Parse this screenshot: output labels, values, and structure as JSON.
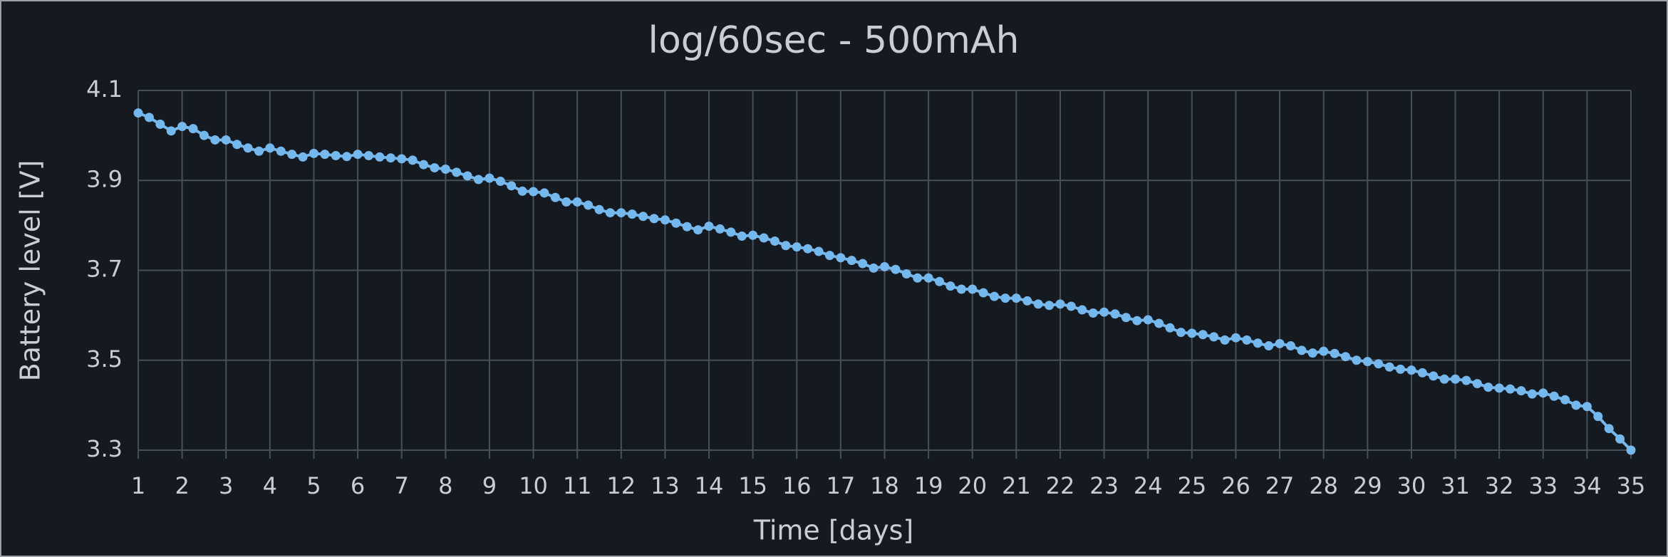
{
  "chart_data": {
    "type": "line",
    "title": "log/60sec - 500mAh",
    "x_label": "Time [days]",
    "y_label": "Battery level [V]",
    "x": [
      1,
      1.25,
      1.5,
      1.75,
      2,
      2.25,
      2.5,
      2.75,
      3,
      3.25,
      3.5,
      3.75,
      4,
      4.25,
      4.5,
      4.75,
      5,
      5.25,
      5.5,
      5.75,
      6,
      6.25,
      6.5,
      6.75,
      7,
      7.25,
      7.5,
      7.75,
      8,
      8.25,
      8.5,
      8.75,
      9,
      9.25,
      9.5,
      9.75,
      10,
      10.25,
      10.5,
      10.75,
      11,
      11.25,
      11.5,
      11.75,
      12,
      12.25,
      12.5,
      12.75,
      13,
      13.25,
      13.5,
      13.75,
      14,
      14.25,
      14.5,
      14.75,
      15,
      15.25,
      15.5,
      15.75,
      16,
      16.25,
      16.5,
      16.75,
      17,
      17.25,
      17.5,
      17.75,
      18,
      18.25,
      18.5,
      18.75,
      19,
      19.25,
      19.5,
      19.75,
      20,
      20.25,
      20.5,
      20.75,
      21,
      21.25,
      21.5,
      21.75,
      22,
      22.25,
      22.5,
      22.75,
      23,
      23.25,
      23.5,
      23.75,
      24,
      24.25,
      24.5,
      24.75,
      25,
      25.25,
      25.5,
      25.75,
      26,
      26.25,
      26.5,
      26.75,
      27,
      27.25,
      27.5,
      27.75,
      28,
      28.25,
      28.5,
      28.75,
      29,
      29.25,
      29.5,
      29.75,
      30,
      30.25,
      30.5,
      30.75,
      31,
      31.25,
      31.5,
      31.75,
      32,
      32.25,
      32.5,
      32.75,
      33,
      33.25,
      33.5,
      33.75,
      34,
      34.25,
      34.5,
      34.75,
      35
    ],
    "series": [
      {
        "name": "Battery level",
        "color": "#75b8ee",
        "values": [
          4.05,
          4.04,
          4.025,
          4.01,
          4.02,
          4.015,
          4.0,
          3.99,
          3.99,
          3.98,
          3.972,
          3.965,
          3.972,
          3.965,
          3.958,
          3.952,
          3.96,
          3.958,
          3.955,
          3.953,
          3.958,
          3.955,
          3.952,
          3.95,
          3.948,
          3.945,
          3.935,
          3.928,
          3.925,
          3.918,
          3.91,
          3.902,
          3.905,
          3.898,
          3.888,
          3.876,
          3.875,
          3.872,
          3.862,
          3.852,
          3.852,
          3.845,
          3.835,
          3.828,
          3.828,
          3.825,
          3.82,
          3.815,
          3.812,
          3.805,
          3.797,
          3.79,
          3.798,
          3.792,
          3.785,
          3.776,
          3.778,
          3.772,
          3.765,
          3.755,
          3.752,
          3.748,
          3.742,
          3.733,
          3.728,
          3.722,
          3.715,
          3.705,
          3.708,
          3.702,
          3.692,
          3.683,
          3.683,
          3.675,
          3.665,
          3.658,
          3.658,
          3.65,
          3.642,
          3.638,
          3.638,
          3.632,
          3.625,
          3.622,
          3.625,
          3.62,
          3.612,
          3.605,
          3.607,
          3.603,
          3.595,
          3.588,
          3.59,
          3.582,
          3.572,
          3.562,
          3.56,
          3.557,
          3.552,
          3.545,
          3.55,
          3.545,
          3.538,
          3.532,
          3.537,
          3.532,
          3.522,
          3.516,
          3.52,
          3.515,
          3.508,
          3.5,
          3.497,
          3.492,
          3.485,
          3.48,
          3.478,
          3.472,
          3.465,
          3.458,
          3.458,
          3.455,
          3.448,
          3.44,
          3.438,
          3.436,
          3.432,
          3.425,
          3.427,
          3.42,
          3.412,
          3.4,
          3.397,
          3.375,
          3.348,
          3.325,
          3.3
        ]
      }
    ],
    "xlim": [
      1,
      35
    ],
    "xticks": [
      1,
      2,
      3,
      4,
      5,
      6,
      7,
      8,
      9,
      10,
      11,
      12,
      13,
      14,
      15,
      16,
      17,
      18,
      19,
      20,
      21,
      22,
      23,
      24,
      25,
      26,
      27,
      28,
      29,
      30,
      31,
      32,
      33,
      34,
      35
    ],
    "ylim": [
      3.3,
      4.1
    ],
    "yticks": [
      3.3,
      3.5,
      3.7,
      3.9,
      4.1
    ],
    "grid": true
  }
}
